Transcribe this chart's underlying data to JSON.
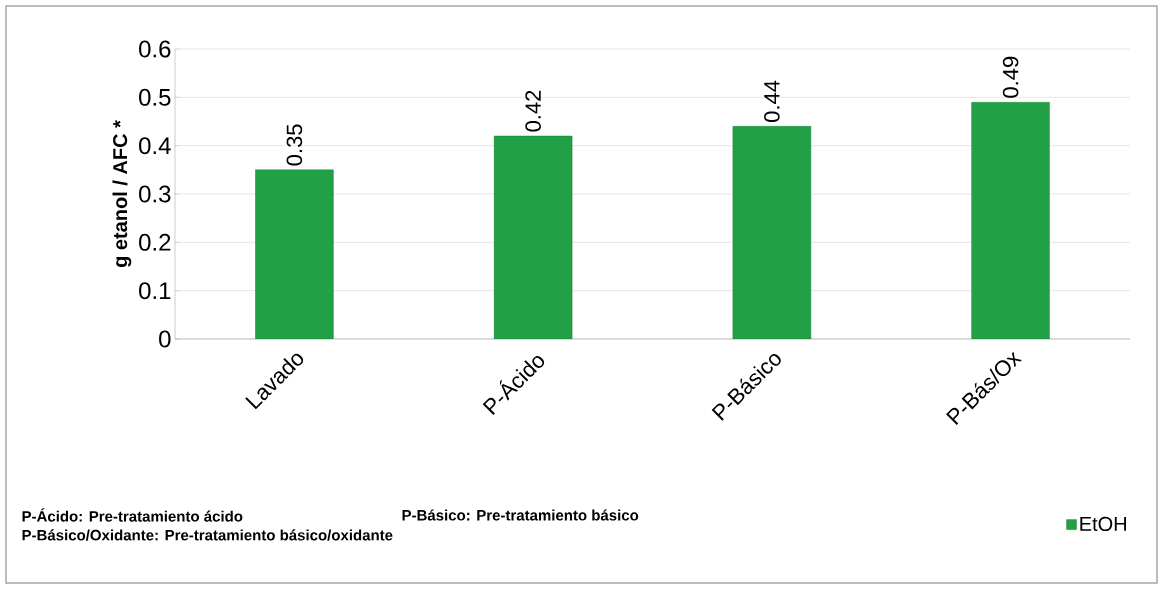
{
  "chart_data": {
    "type": "bar",
    "ylabel": "g etanol / AFC *",
    "categories": [
      "Lavado",
      "P-Ácido",
      "P-Básico",
      "P-Bás/Ox"
    ],
    "series": [
      {
        "name": "EtOH",
        "color": "#21a046",
        "values": [
          0.35,
          0.42,
          0.44,
          0.49
        ]
      }
    ],
    "ylim": [
      0,
      0.6
    ],
    "yticks": [
      0,
      0.1,
      0.2,
      0.3,
      0.4,
      0.5,
      0.6
    ],
    "grid": "y",
    "legend": "bottom right",
    "data_labels": true,
    "annotations": [
      "P-Ácido: Pre-tratamiento ácido",
      "P-Básico: Pre-tratamiento básico",
      "P-Básico/Oxidante: Pre-tratamiento básico/oxidante"
    ]
  }
}
